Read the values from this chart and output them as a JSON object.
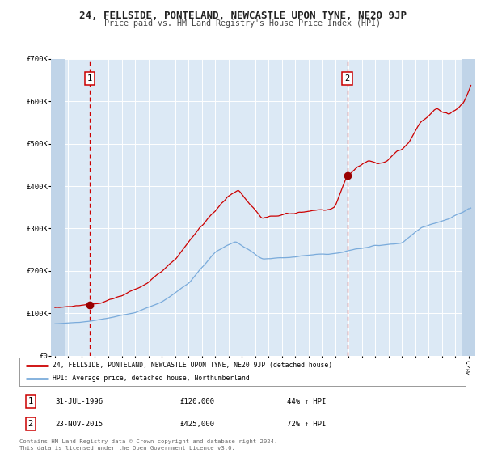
{
  "title": "24, FELLSIDE, PONTELAND, NEWCASTLE UPON TYNE, NE20 9JP",
  "subtitle": "Price paid vs. HM Land Registry's House Price Index (HPI)",
  "ylim": [
    0,
    700000
  ],
  "yticks": [
    0,
    100000,
    200000,
    300000,
    400000,
    500000,
    600000,
    700000
  ],
  "ytick_labels": [
    "£0",
    "£100K",
    "£200K",
    "£300K",
    "£400K",
    "£500K",
    "£600K",
    "£700K"
  ],
  "xlim_start": 1993.7,
  "xlim_end": 2025.5,
  "hatch_left_end": 1994.75,
  "hatch_right_start": 2024.55,
  "xticks": [
    1994,
    1995,
    1996,
    1997,
    1998,
    1999,
    2000,
    2001,
    2002,
    2003,
    2004,
    2005,
    2006,
    2007,
    2008,
    2009,
    2010,
    2011,
    2012,
    2013,
    2014,
    2015,
    2016,
    2017,
    2018,
    2019,
    2020,
    2021,
    2022,
    2023,
    2024,
    2025
  ],
  "plot_bg_color": "#dce9f5",
  "outer_bg_color": "#ffffff",
  "hatch_color": "#c0d4e8",
  "grid_color": "#ffffff",
  "red_line_color": "#cc0000",
  "blue_line_color": "#7aabdb",
  "marker_color": "#990000",
  "vline_color": "#cc0000",
  "sale1_x": 1996.58,
  "sale1_y": 120000,
  "sale2_x": 2015.9,
  "sale2_y": 425000,
  "legend_label_red": "24, FELLSIDE, PONTELAND, NEWCASTLE UPON TYNE, NE20 9JP (detached house)",
  "legend_label_blue": "HPI: Average price, detached house, Northumberland",
  "ann1_label": "1",
  "ann2_label": "2",
  "ann1_date": "31-JUL-1996",
  "ann1_price": "£120,000",
  "ann1_hpi": "44% ↑ HPI",
  "ann2_date": "23-NOV-2015",
  "ann2_price": "£425,000",
  "ann2_hpi": "72% ↑ HPI",
  "footer1": "Contains HM Land Registry data © Crown copyright and database right 2024.",
  "footer2": "This data is licensed under the Open Government Licence v3.0."
}
